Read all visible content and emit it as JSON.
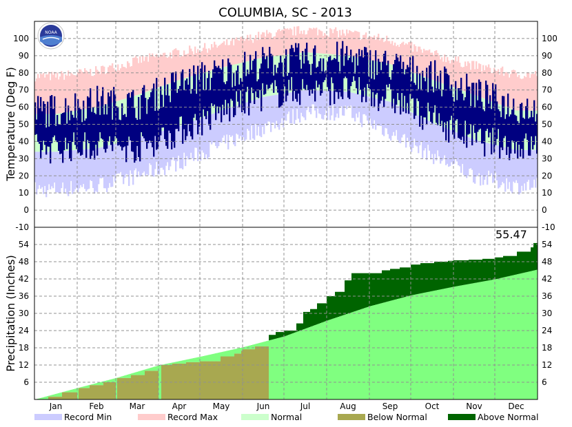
{
  "chart_data": [
    {
      "panel": "temperature",
      "type": "area",
      "title": "COLUMBIA, SC - 2013",
      "ylabel": "Temperature (Deg F)",
      "ylim": [
        -10,
        110
      ],
      "yticks": [
        -10,
        0,
        10,
        20,
        30,
        40,
        50,
        60,
        70,
        80,
        90,
        100
      ],
      "x_months": [
        "Jan",
        "Feb",
        "Mar",
        "Apr",
        "May",
        "Jun",
        "Jul",
        "Aug",
        "Sep",
        "Oct",
        "Nov",
        "Dec"
      ],
      "grid": true,
      "series": [
        {
          "name": "Record Min",
          "color": "#ccccff",
          "month_mid_values": [
            12,
            14,
            20,
            28,
            38,
            48,
            57,
            57,
            45,
            32,
            20,
            14
          ]
        },
        {
          "name": "Record Max",
          "color": "#ffcccc",
          "month_mid_values": [
            78,
            81,
            87,
            92,
            96,
            102,
            105,
            103,
            99,
            91,
            84,
            79
          ]
        },
        {
          "name": "Normal",
          "color": "#ccffcc",
          "normal_high": [
            56,
            60,
            67,
            76,
            83,
            89,
            92,
            90,
            85,
            76,
            67,
            58
          ],
          "normal_low": [
            34,
            36,
            42,
            49,
            58,
            66,
            70,
            69,
            63,
            51,
            41,
            35
          ]
        },
        {
          "name": "Observed",
          "color": "#000080",
          "approx_high": [
            58,
            63,
            62,
            74,
            80,
            86,
            88,
            89,
            84,
            78,
            68,
            60
          ],
          "approx_low": [
            36,
            38,
            36,
            46,
            57,
            67,
            70,
            70,
            65,
            53,
            41,
            37
          ]
        }
      ]
    },
    {
      "panel": "precipitation",
      "type": "area",
      "ylabel": "Precipitation (Inches)",
      "ylim": [
        0,
        60
      ],
      "yticks": [
        6,
        12,
        18,
        24,
        30,
        36,
        42,
        48,
        54
      ],
      "annotation": "55.47",
      "x_months": [
        "Jan",
        "Feb",
        "Mar",
        "Apr",
        "May",
        "Jun",
        "Jul",
        "Aug",
        "Sep",
        "Oct",
        "Nov",
        "Dec"
      ],
      "grid": true,
      "normal_cumulative": {
        "days": [
          0,
          31,
          59,
          90,
          120,
          151,
          181,
          212,
          243,
          273,
          304,
          334,
          365
        ],
        "values": [
          0,
          4.0,
          7.5,
          11.9,
          14.9,
          18.2,
          22.0,
          27.5,
          32.5,
          36.3,
          39.3,
          41.9,
          45.3
        ]
      },
      "observed_cumulative": {
        "days": [
          0,
          10,
          20,
          31,
          40,
          50,
          59,
          70,
          80,
          90,
          100,
          110,
          120,
          135,
          145,
          150,
          151,
          160,
          170,
          175,
          181,
          190,
          195,
          200,
          205,
          212,
          218,
          225,
          230,
          235,
          243,
          252,
          258,
          265,
          273,
          280,
          290,
          300,
          304,
          315,
          325,
          334,
          340,
          350,
          360,
          362,
          365
        ],
        "values": [
          0,
          1.0,
          2.5,
          4.0,
          5.0,
          6.0,
          7.5,
          8.5,
          10.0,
          12.0,
          12.5,
          13.0,
          13.3,
          15.0,
          16.0,
          17.0,
          17.5,
          18.5,
          22.5,
          23.5,
          24.0,
          26.5,
          30.5,
          31.5,
          33.5,
          36.0,
          37.5,
          41.5,
          44.0,
          44.0,
          44.0,
          45.0,
          45.5,
          46.0,
          47.0,
          47.5,
          48.0,
          48.3,
          48.5,
          48.7,
          49.0,
          49.5,
          50.0,
          51.5,
          53.0,
          54.5,
          55.47
        ]
      },
      "series_colors": {
        "Normal": "#80ff80",
        "Below Normal": "#a8a850",
        "Above Normal": "#006400"
      }
    }
  ],
  "legend": [
    {
      "label": "Record Min",
      "color": "#ccccff"
    },
    {
      "label": "Record Max",
      "color": "#ffcccc"
    },
    {
      "label": "Normal",
      "color": "#ccffcc"
    },
    {
      "label": "Below Normal",
      "color": "#a8a850"
    },
    {
      "label": "Above Normal",
      "color": "#006400"
    }
  ],
  "logo": {
    "text": "NOAA",
    "icon": "noaa-logo-icon"
  }
}
